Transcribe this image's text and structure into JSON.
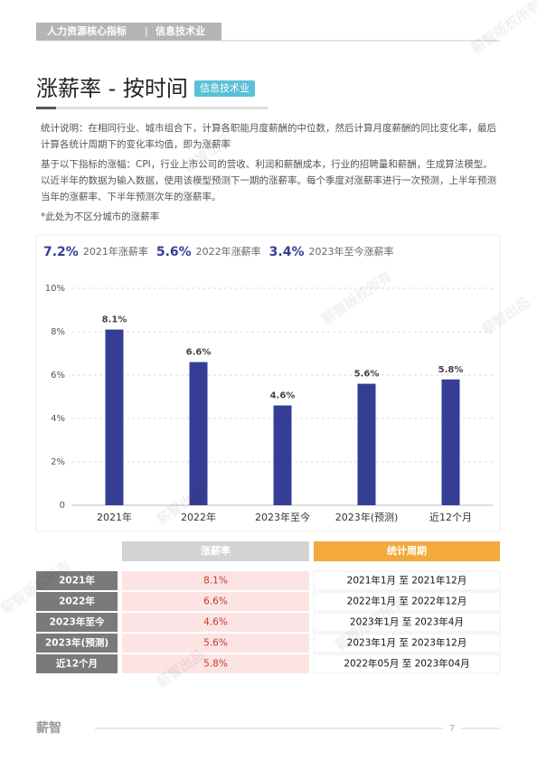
{
  "header": {
    "section": "人力资源核心指标",
    "separator": "|",
    "industry": "信息技术业"
  },
  "title": "涨薪率 - 按时间",
  "tag": "信息技术业",
  "notes": [
    "统计说明：在相同行业、城市组合下，计算各职能月度薪酬的中位数，然后计算月度薪酬的同比变化率，最后计算各统计周期下的变化率均值，即为涨薪率",
    "基于以下指标的涨幅：CPI，行业上市公司的营收、利润和薪酬成本，行业的招聘量和薪酬，生成算法模型。以近半年的数据为输入数据，使用该模型预测下一期的涨薪率。每个季度对涨薪率进行一次预测，上半年预测当年的涨薪率、下半年预测次年的涨薪率。",
    "*此处为不区分城市的涨薪率"
  ],
  "summary": [
    {
      "value": "7.2%",
      "label": "2021年涨薪率"
    },
    {
      "value": "5.6%",
      "label": "2022年涨薪率"
    },
    {
      "value": "3.4%",
      "label": "2023年至今涨薪率"
    }
  ],
  "chart_data": {
    "type": "bar",
    "categories": [
      "2021年",
      "2022年",
      "2023年至今",
      "2023年(预测)",
      "近12个月"
    ],
    "values": [
      8.1,
      6.6,
      4.6,
      5.6,
      5.8
    ],
    "value_labels": [
      "8.1%",
      "6.6%",
      "4.6%",
      "5.6%",
      "5.8%"
    ],
    "color": "#363d94",
    "ylim": [
      0,
      10
    ],
    "yticks": [
      0,
      {
        "value": 2,
        "label": "2%"
      },
      {
        "value": 4,
        "label": "4%"
      },
      {
        "value": 6,
        "label": "6%"
      },
      {
        "value": 8,
        "label": "8%"
      },
      {
        "value": 10,
        "label": "10%"
      }
    ],
    "grid": true
  },
  "table": {
    "headers": [
      "涨薪率",
      "统计周期"
    ],
    "rows": [
      [
        "2021年",
        "8.1%",
        "2021年1月 至 2021年12月"
      ],
      [
        "2022年",
        "6.6%",
        "2022年1月 至 2022年12月"
      ],
      [
        "2023年至今",
        "4.6%",
        "2023年1月 至 2023年4月"
      ],
      [
        "2023年(预测)",
        "5.6%",
        "2023年1月 至 2023年12月"
      ],
      [
        "近12个月",
        "5.8%",
        "2022年05月 至 2023年04月"
      ]
    ]
  },
  "watermark": [
    "薪智版权所有",
    "薪智出品"
  ],
  "footer": {
    "logo": "薪智",
    "page": "7"
  }
}
